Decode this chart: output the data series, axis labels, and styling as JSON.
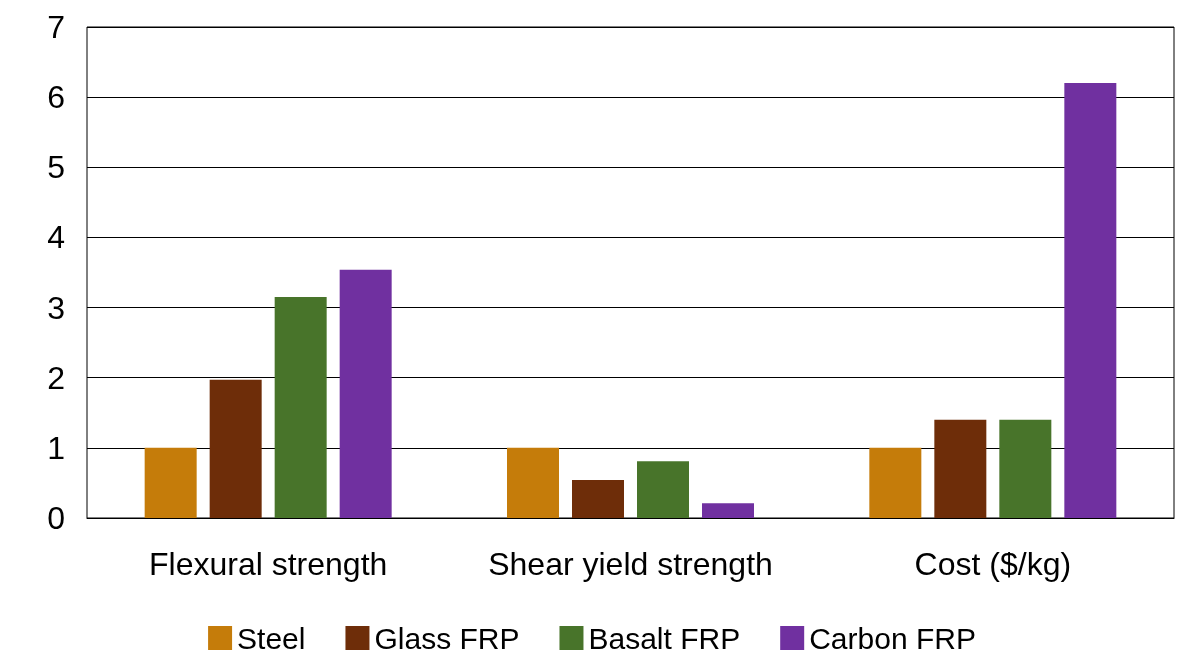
{
  "chart_data": {
    "type": "bar",
    "categories": [
      "Flexural strength",
      "Shear yield strength",
      "Cost ($/kg)"
    ],
    "series": [
      {
        "name": "Steel",
        "color": "#c57c0a",
        "values": [
          1,
          1,
          1
        ]
      },
      {
        "name": "Glass FRP",
        "color": "#6e2d09",
        "values": [
          1.97,
          0.54,
          1.4
        ]
      },
      {
        "name": "Basalt FRP",
        "color": "#48742a",
        "values": [
          3.15,
          0.81,
          1.4
        ]
      },
      {
        "name": "Carbon FRP",
        "color": "#7030a0",
        "values": [
          3.54,
          0.21,
          6.2
        ]
      }
    ],
    "ylim": [
      0,
      7
    ],
    "yticks": [
      0,
      1,
      2,
      3,
      4,
      5,
      6,
      7
    ],
    "grid": "y",
    "legend": "bottom"
  }
}
